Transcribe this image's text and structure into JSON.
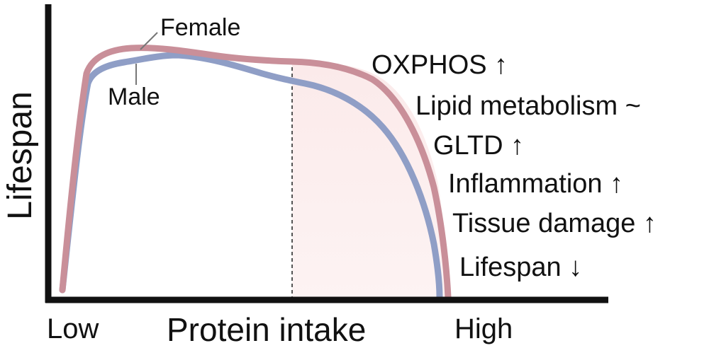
{
  "y_axis": {
    "label": "Lifespan"
  },
  "x_axis": {
    "label": "Protein intake",
    "low_label": "Low",
    "high_label": "High"
  },
  "curves": [
    {
      "name": "Female",
      "color": "#c98f99"
    },
    {
      "name": "Male",
      "color": "#8f9ec6"
    }
  ],
  "high_region": {
    "color": "#fbeaea"
  },
  "annotations": [
    "OXPHOS ↑",
    "Lipid metabolism ~",
    "GLTD ↑",
    "Inflammation ↑",
    "Tissue damage ↑",
    "Lifespan ↓"
  ]
}
